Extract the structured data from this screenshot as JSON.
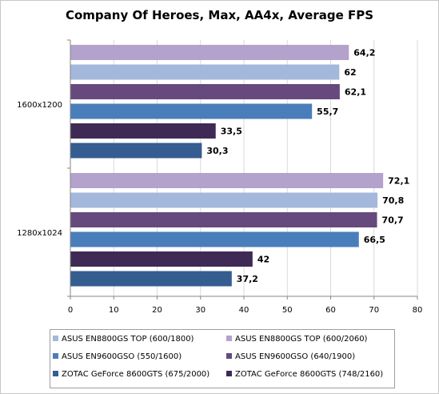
{
  "chart_data": {
    "type": "bar",
    "orientation": "horizontal",
    "title": "Company Of Heroes, Max, AA4x, Average FPS",
    "xlabel": "",
    "ylabel": "",
    "xlim": [
      0,
      80
    ],
    "x_ticks": [
      "0",
      "10",
      "20",
      "30",
      "40",
      "50",
      "60",
      "70",
      "80"
    ],
    "grid": true,
    "legend_position": "bottom",
    "categories": [
      "1600x1200",
      "1280x1024"
    ],
    "series": [
      {
        "name": "ASUS EN8800GS TOP (600/2060)",
        "color": "#b3a2cc",
        "values": [
          64.2,
          72.1
        ],
        "labels": [
          "64,2",
          "72,1"
        ]
      },
      {
        "name": "ASUS EN8800GS TOP (600/1800)",
        "color": "#a3b8db",
        "values": [
          62,
          70.8
        ],
        "labels": [
          "62",
          "70,8"
        ]
      },
      {
        "name": "ASUS EN9600GSO (640/1900)",
        "color": "#664a7e",
        "values": [
          62.1,
          70.7
        ],
        "labels": [
          "62,1",
          "70,7"
        ]
      },
      {
        "name": "ASUS EN9600GSO (550/1600)",
        "color": "#4a7ebb",
        "values": [
          55.7,
          66.5
        ],
        "labels": [
          "55,7",
          "66,5"
        ]
      },
      {
        "name": "ZOTAC GeForce 8600GTS (748/2160)",
        "color": "#3e2a55",
        "values": [
          33.5,
          42
        ],
        "labels": [
          "33,5",
          "42"
        ]
      },
      {
        "name": "ZOTAC GeForce 8600GTS (675/2000)",
        "color": "#355d8f",
        "values": [
          30.3,
          37.2
        ],
        "labels": [
          "30,3",
          "37,2"
        ]
      }
    ],
    "legend_order": [
      1,
      0,
      3,
      2,
      5,
      4
    ]
  }
}
